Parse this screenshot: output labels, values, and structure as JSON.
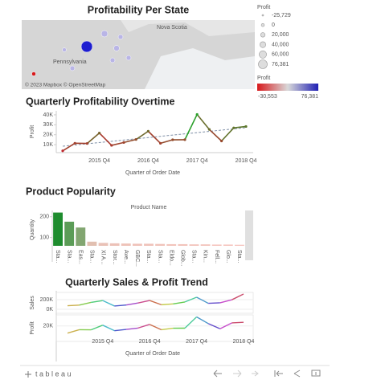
{
  "map": {
    "title": "Profitability Per State",
    "labels": [
      "Nova Scotia",
      "Pennsylvania"
    ],
    "attribution": "© 2023 Mapbox © OpenStreetMap"
  },
  "legends": {
    "size": {
      "title": "Profit",
      "items": [
        "-25,729",
        "0",
        "20,000",
        "40,000",
        "60,000",
        "76,381"
      ]
    },
    "color": {
      "title": "Profit",
      "min": "-30,553",
      "max": "76,381",
      "colors": [
        "#d7191c",
        "#d9d9d9",
        "#1f1fb4"
      ]
    }
  },
  "chart_data": [
    {
      "type": "line",
      "title": "Quarterly Profitability Overtime",
      "y_label": "Profit",
      "x_label": "Quarter of Order Date",
      "categories": [
        null,
        null,
        null,
        "2015 Q4",
        null,
        null,
        null,
        "2016 Q4",
        null,
        null,
        null,
        "2017 Q4",
        null,
        null,
        null,
        "2018 Q4"
      ],
      "values": [
        3800,
        11400,
        11200,
        21700,
        9300,
        12200,
        15200,
        23500,
        11400,
        14900,
        15000,
        40400,
        25300,
        13700,
        26900,
        28300
      ],
      "ylim": [
        2000,
        44000
      ],
      "yticks": [
        {
          "value": 10000,
          "label": "10K"
        },
        {
          "value": 20000,
          "label": "20K"
        },
        {
          "value": 30000,
          "label": "30K"
        },
        {
          "value": 40000,
          "label": "40K"
        }
      ],
      "color_low": "#c0282e",
      "color_high": "#2ca02c",
      "trend_line": true
    },
    {
      "type": "bar",
      "title": "Product Popularity",
      "header": "Product Name",
      "y_label": "Quantity",
      "categories": [
        "Sta...",
        "Sta...",
        "Eas...",
        "Sta...",
        "Xl A...",
        "Stor...",
        "Ave...",
        "GBC...",
        "Sta...",
        "Sta...",
        "Eldo...",
        "Glob...",
        "Sta...",
        "Kin...",
        "Fell...",
        "Glo...",
        "Sta..."
      ],
      "values": [
        220,
        176,
        148,
        80,
        74,
        72,
        71,
        70,
        70,
        69,
        68,
        68,
        67,
        67,
        66,
        66,
        65
      ],
      "ylim": [
        60,
        230
      ],
      "yticks": [
        100,
        200
      ],
      "color_low": "#f6c4be",
      "color_high": "#1e8c2e"
    },
    {
      "type": "panes",
      "title": "Quarterly Sales & Profit Trend",
      "x_label": "Quarter of Order Date",
      "categories": [
        null,
        null,
        null,
        "2015 Q4",
        null,
        null,
        null,
        "2016 Q4",
        null,
        null,
        null,
        "2017 Q4",
        null,
        null,
        null,
        "2018 Q4"
      ],
      "panes": [
        {
          "name": "Sales",
          "values": [
            74000,
            86000,
            143000,
            181000,
            68000,
            89000,
            131000,
            182000,
            94000,
            112000,
            152000,
            250000,
            124000,
            134000,
            197000,
            317000
          ],
          "ylim": [
            -83000,
            350000
          ],
          "yticks": [
            {
              "value": 0,
              "label": "0K"
            },
            {
              "value": 200000,
              "label": "200K"
            }
          ]
        },
        {
          "name": "Profit",
          "values": [
            3800,
            11400,
            11200,
            21700,
            9300,
            12200,
            15200,
            23500,
            11400,
            14900,
            15000,
            40400,
            25300,
            13700,
            26900,
            28300
          ],
          "ylim": [
            -15000,
            45000
          ],
          "yticks": [
            {
              "value": 20000,
              "label": "20K"
            }
          ]
        }
      ]
    }
  ],
  "toolbar": {
    "logo": "tableau"
  }
}
